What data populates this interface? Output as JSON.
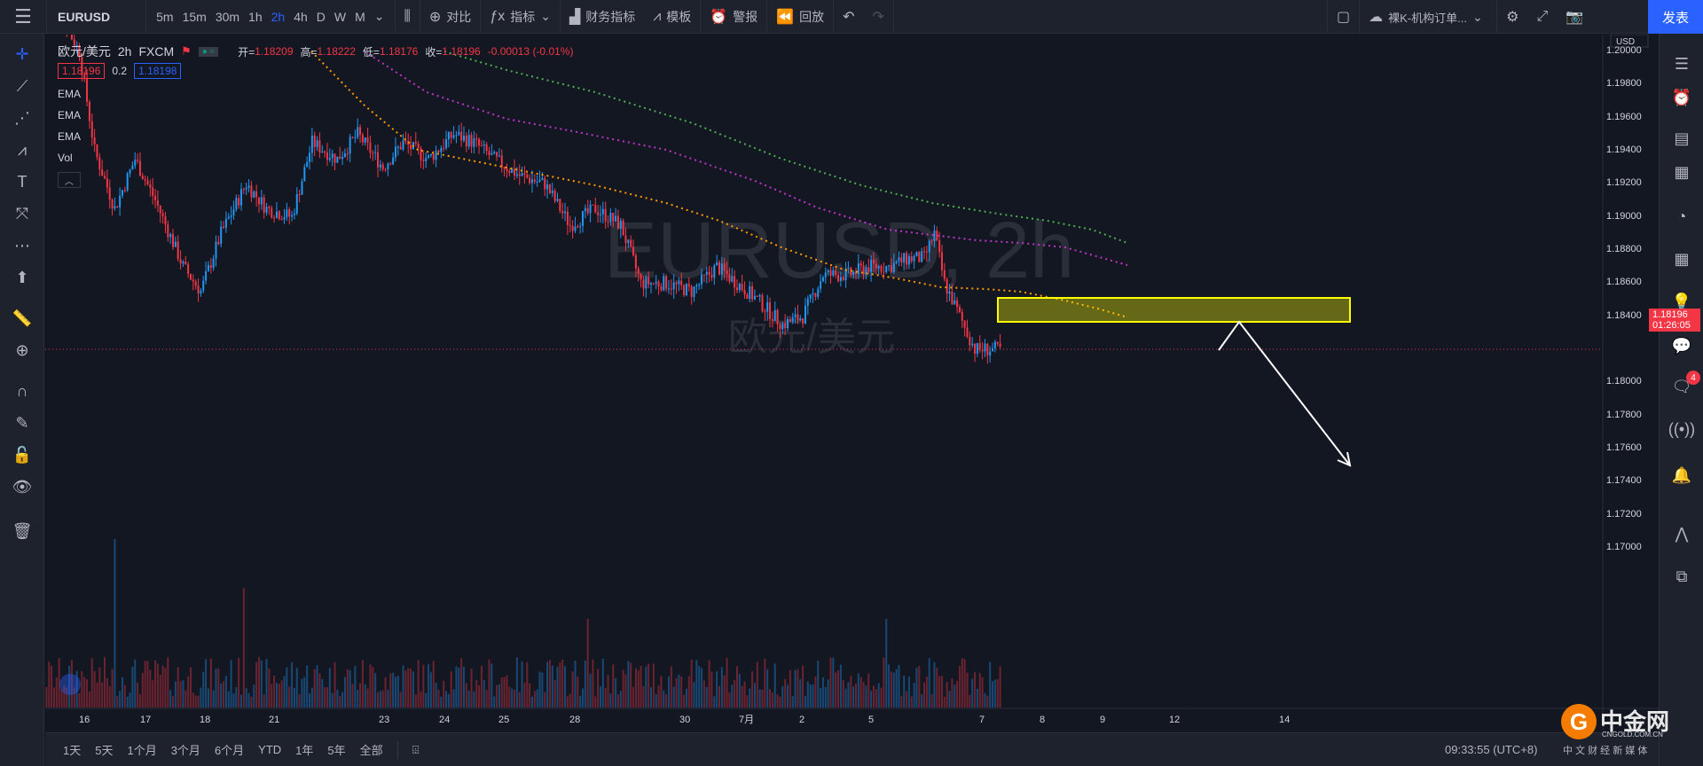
{
  "toolbar": {
    "symbol": "EURUSD",
    "timeframes": [
      "5m",
      "15m",
      "30m",
      "1h",
      "2h",
      "4h",
      "D",
      "W",
      "M"
    ],
    "active_timeframe": "2h",
    "compare": "对比",
    "indicators": "指标",
    "financials": "财务指标",
    "templates": "模板",
    "alerts": "警报",
    "replay": "回放",
    "layout_name": "裸K-机构订单...",
    "publish": "发表"
  },
  "legend": {
    "title": "欧元/美元",
    "interval": "2h",
    "source": "FXCM",
    "open_k": "开=",
    "open_v": "1.18209",
    "high_k": "高=",
    "high_v": "1.18222",
    "low_k": "低=",
    "low_v": "1.18176",
    "close_k": "收=",
    "close_v": "1.18196",
    "change": "-0.00013 (-0.01%)",
    "bid": "1.18196",
    "spread": "0.2",
    "ask": "1.18198",
    "indicators": [
      "EMA",
      "EMA",
      "EMA",
      "Vol"
    ]
  },
  "watermark": {
    "line1": "EURUSD, 2h",
    "line2": "欧元/美元"
  },
  "price_axis": {
    "currency": "USD",
    "labels": [
      "1.20000",
      "1.19800",
      "1.19600",
      "1.19400",
      "1.19200",
      "1.19000",
      "1.18800",
      "1.18600",
      "1.18400",
      "1.18000",
      "1.17800",
      "1.17600",
      "1.17400",
      "1.17200",
      "1.17000"
    ],
    "current_price": "1.18196",
    "countdown": "01:26:05"
  },
  "time_axis": [
    "16",
    "17",
    "18",
    "21",
    "23",
    "24",
    "25",
    "28",
    "30",
    "7月",
    "2",
    "5",
    "7",
    "8",
    "9",
    "12",
    "14"
  ],
  "bottom": {
    "ranges": [
      "1天",
      "5天",
      "1个月",
      "3个月",
      "6个月",
      "YTD",
      "1年",
      "5年",
      "全部"
    ],
    "clock": "09:33:55 (UTC+8)"
  },
  "brand": {
    "name": "中金网",
    "url": "CNGOLD.COM.CN",
    "sub": "中 文 财 经 新 媒 体"
  },
  "notifications": "4",
  "colors": {
    "up": "#2196f3",
    "down": "#f23645",
    "ema_fast": "#ff9800",
    "ema_mid": "#c033c8",
    "ema_slow": "#4caf50",
    "zone": "#ffff00",
    "accent": "#2962ff"
  }
}
